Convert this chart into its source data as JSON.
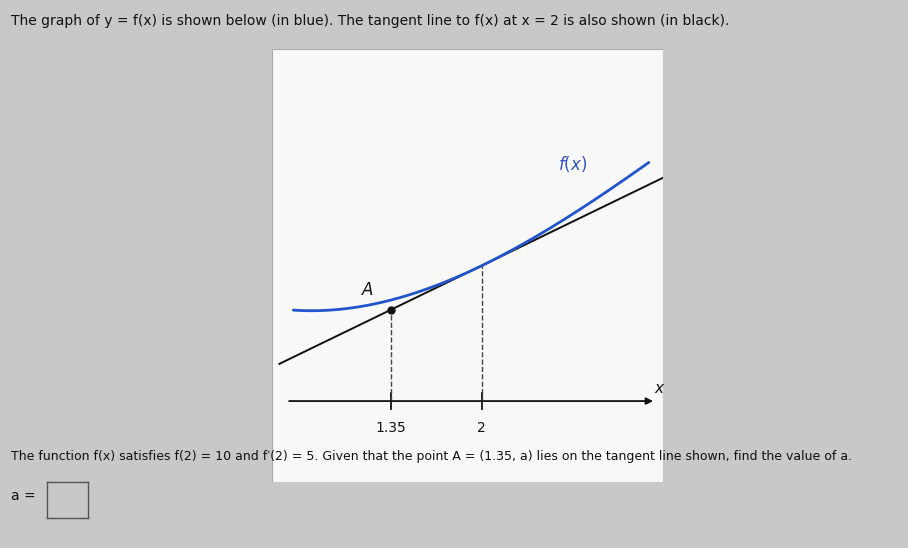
{
  "title_text": "The graph of y = f(x) is shown below (in blue). The tangent line to f(x) at x = 2 is also shown (in black).",
  "problem_text": "The function f(x) satisfies f(2) = 10 and f′(2) = 5. Given that the point A = (1.35, a) lies on the tangent line shown, find the value of a.",
  "f2": 10,
  "fprime2": 5,
  "x_tangent": 2.0,
  "x_A": 1.35,
  "plot_bg": "#f8f8f8",
  "outer_bg": "#c8c8c8",
  "curve_color": "#2255cc",
  "tangent_color": "#111111",
  "point_color": "#111111",
  "axis_color": "#111111",
  "label_color": "#3355bb",
  "x_display_min": 0.5,
  "x_display_max": 3.3,
  "y_display_min": -6,
  "y_display_max": 26,
  "tick_x1": 1.35,
  "tick_x2": 2.0
}
